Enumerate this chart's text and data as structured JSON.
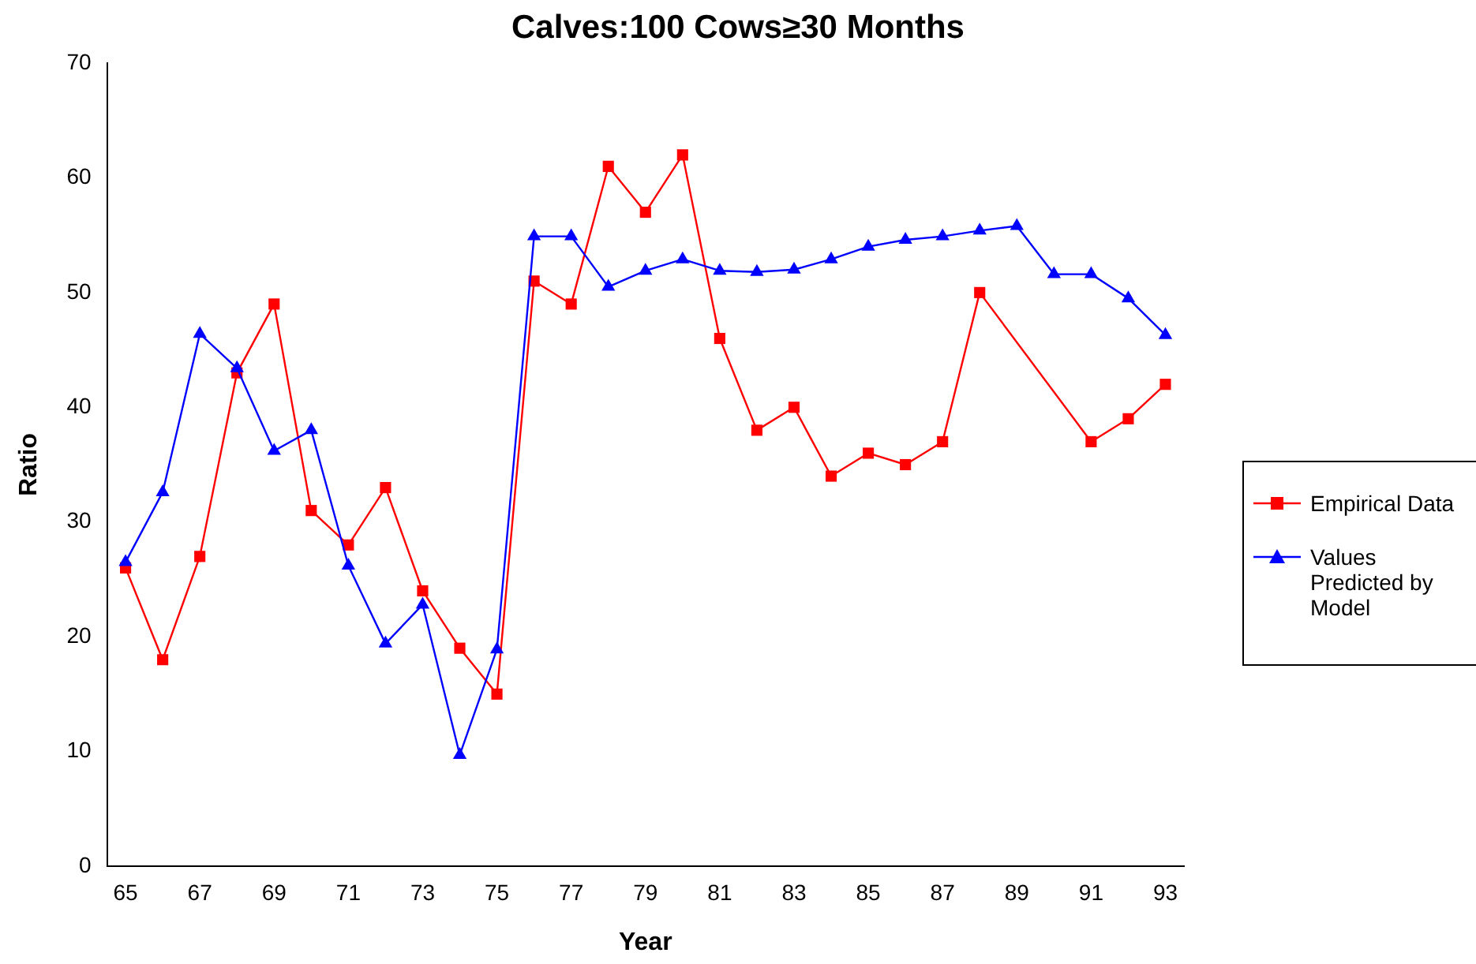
{
  "chart_data": {
    "type": "line",
    "title": "Calves:100 Cows≥30 Months",
    "xlabel": "Year",
    "ylabel": "Ratio",
    "categories": [
      "65",
      null,
      "67",
      null,
      "69",
      null,
      "71",
      null,
      "73",
      null,
      "75",
      null,
      "77",
      null,
      "79",
      null,
      "81",
      null,
      "83",
      null,
      "85",
      null,
      "87",
      null,
      "89",
      null,
      "91",
      null,
      "93"
    ],
    "series": [
      {
        "name": "Empirical Data",
        "color": "#ff0000",
        "marker": "square",
        "values": [
          26,
          18,
          27,
          43,
          49,
          31,
          28,
          33,
          24,
          19,
          15,
          51,
          49,
          61,
          57,
          62,
          46,
          38,
          40,
          34,
          36,
          35,
          37,
          50,
          null,
          null,
          37,
          39,
          42
        ]
      },
      {
        "name": "Values Predicted by Model",
        "color": "#0000ff",
        "marker": "triangle",
        "values": [
          26.5,
          32.6,
          46.4,
          43.4,
          36.2,
          38.0,
          26.2,
          19.4,
          22.8,
          9.7,
          18.9,
          54.9,
          54.9,
          50.5,
          51.9,
          52.9,
          51.9,
          51.8,
          52.0,
          52.9,
          54.0,
          54.6,
          54.9,
          55.4,
          55.8,
          51.6,
          51.6,
          49.5,
          46.3
        ]
      }
    ],
    "ylim": [
      0,
      70
    ],
    "yticks": [
      0,
      10,
      20,
      30,
      40,
      50,
      60,
      70
    ],
    "grid": false,
    "legend": "right"
  }
}
